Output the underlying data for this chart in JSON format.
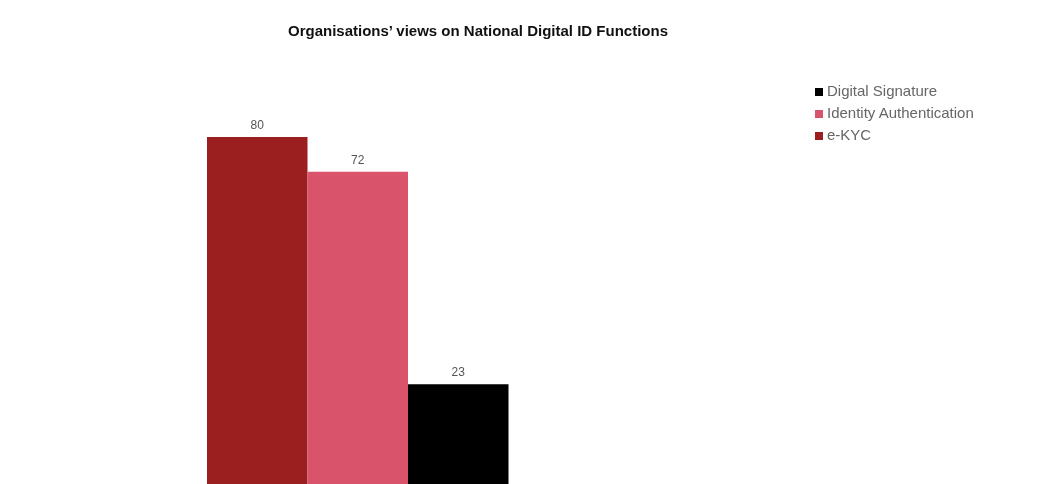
{
  "chart_data": {
    "type": "bar",
    "title": "Organisations’ views on National Digital ID Functions",
    "categories": [
      null
    ],
    "series": [
      {
        "name": "e-KYC",
        "color": "#9b1f1f",
        "values": [
          80
        ]
      },
      {
        "name": "Identity Authentication",
        "color": "#d9546a",
        "values": [
          72
        ]
      },
      {
        "name": "Digital Signature",
        "color": "#000000",
        "values": [
          23
        ]
      }
    ],
    "data_labels": true,
    "legend": "top right",
    "grid": false
  }
}
